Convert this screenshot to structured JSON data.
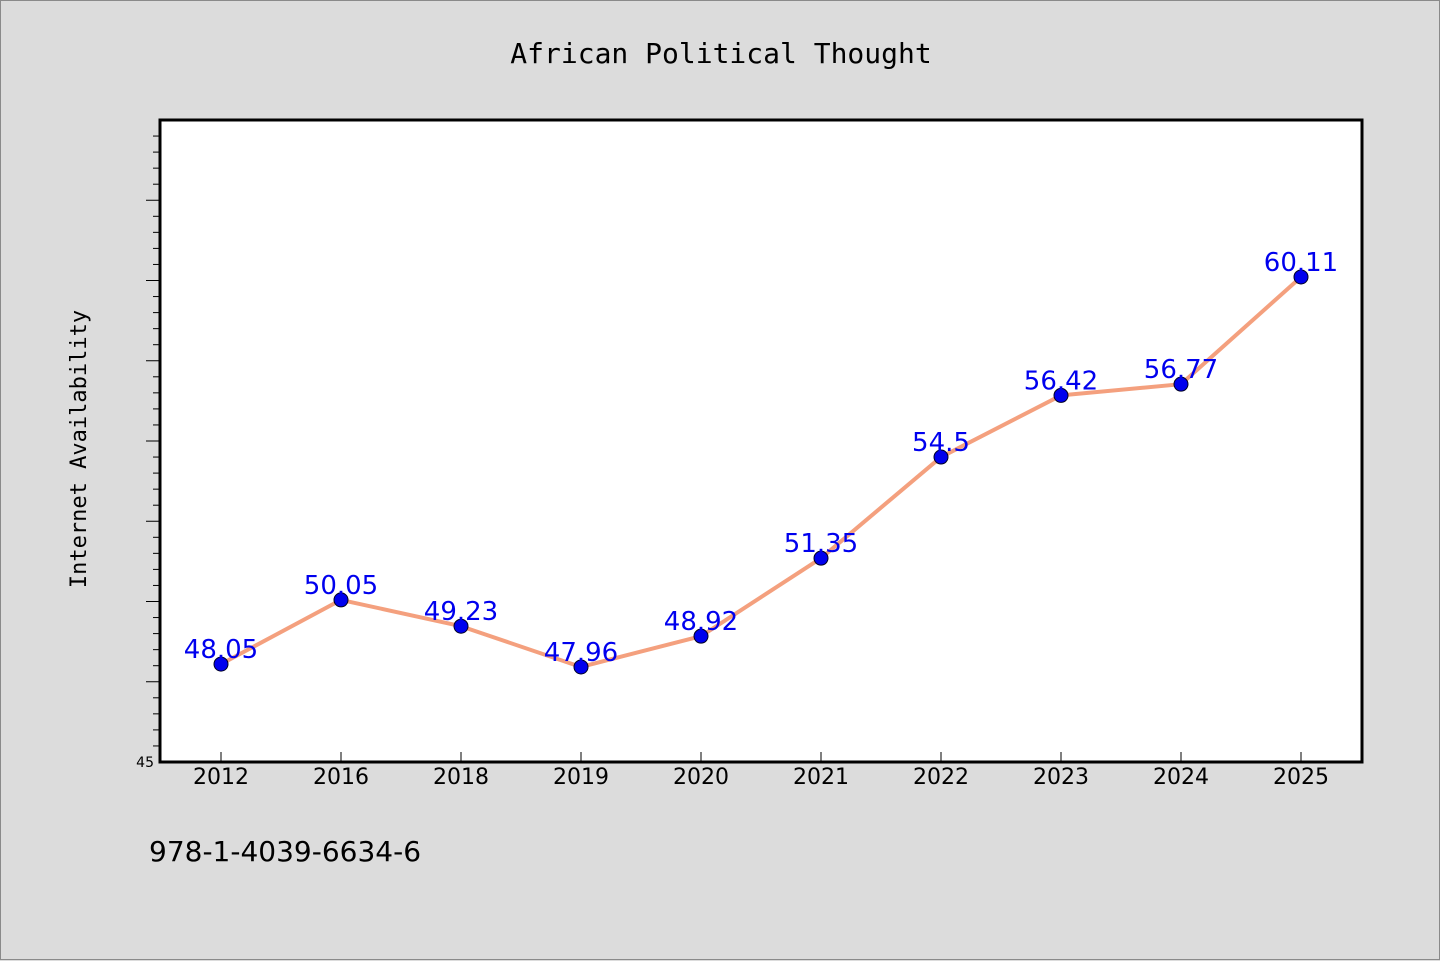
{
  "chart_data": {
    "type": "line",
    "title": "African Political Thought",
    "ylabel": "Internet Availability",
    "xlabel": "",
    "categories": [
      "2012",
      "2016",
      "2018",
      "2019",
      "2020",
      "2021",
      "2022",
      "2023",
      "2024",
      "2025"
    ],
    "series": [
      {
        "values": [
          48.05,
          50.05,
          49.23,
          47.96,
          48.92,
          51.35,
          54.5,
          56.42,
          56.77,
          60.11
        ],
        "data_labels": [
          "48.05",
          "50.05",
          "49.23",
          "47.96",
          "48.92",
          "51.35",
          "54.5",
          "56.42",
          "56.77",
          "60.11"
        ],
        "line_color": "#f4a07e",
        "marker_color": "#0000ee"
      }
    ],
    "ylim": [
      45,
      65
    ],
    "yticks": [
      {
        "value": 45,
        "label": "45"
      }
    ],
    "grid": false,
    "legend": "none",
    "label_color": "#0000ee"
  },
  "footnote": "978-1-4039-6634-6"
}
